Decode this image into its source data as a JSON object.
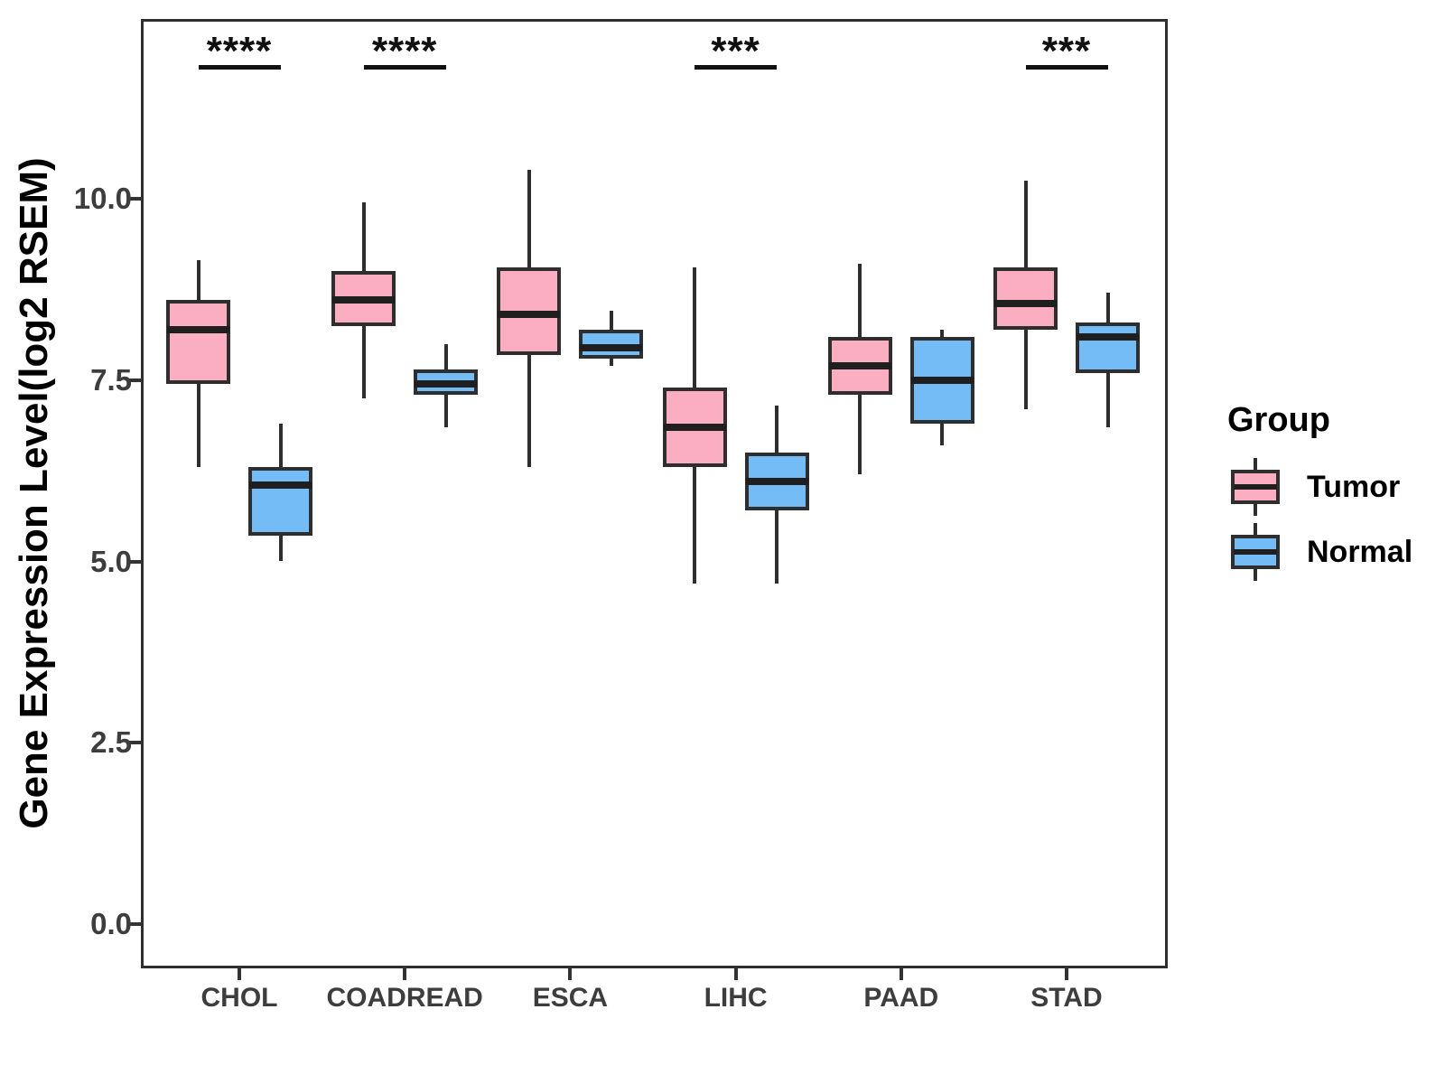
{
  "chart_data": {
    "type": "boxplot",
    "title": "",
    "xlabel": "",
    "ylabel": "Gene Expression Level(log2 RSEM)",
    "categories": [
      "CHOL",
      "COADREAD",
      "ESCA",
      "LIHC",
      "PAAD",
      "STAD"
    ],
    "y_tick_labels": [
      "0.0",
      "2.5",
      "5.0",
      "7.5",
      "10.0"
    ],
    "y_tick_values": [
      0,
      2.5,
      5,
      7.5,
      10
    ],
    "ylim": [
      -0.6,
      12.5
    ],
    "grid": false,
    "legend_position": "right",
    "series": [
      {
        "name": "Tumor",
        "fill": "#FBAEC1",
        "boxes": [
          {
            "low": 6.3,
            "q1": 7.45,
            "median": 8.2,
            "q3": 8.6,
            "high": 9.15
          },
          {
            "low": 7.25,
            "q1": 8.25,
            "median": 8.6,
            "q3": 9.0,
            "high": 9.95
          },
          {
            "low": 6.3,
            "q1": 7.85,
            "median": 8.4,
            "q3": 9.05,
            "high": 10.4
          },
          {
            "low": 4.7,
            "q1": 6.3,
            "median": 6.85,
            "q3": 7.4,
            "high": 9.05
          },
          {
            "low": 6.2,
            "q1": 7.3,
            "median": 7.7,
            "q3": 8.1,
            "high": 9.1
          },
          {
            "low": 7.1,
            "q1": 8.2,
            "median": 8.55,
            "q3": 9.05,
            "high": 10.25
          }
        ]
      },
      {
        "name": "Normal",
        "fill": "#73BCF6",
        "boxes": [
          {
            "low": 5.0,
            "q1": 5.35,
            "median": 6.05,
            "q3": 6.3,
            "high": 6.9
          },
          {
            "low": 6.85,
            "q1": 7.3,
            "median": 7.45,
            "q3": 7.65,
            "high": 8.0
          },
          {
            "low": 7.7,
            "q1": 7.8,
            "median": 7.95,
            "q3": 8.2,
            "high": 8.45
          },
          {
            "low": 4.7,
            "q1": 5.7,
            "median": 6.1,
            "q3": 6.5,
            "high": 7.15
          },
          {
            "low": 6.6,
            "q1": 6.9,
            "median": 7.5,
            "q3": 8.1,
            "high": 8.2
          },
          {
            "low": 6.85,
            "q1": 7.6,
            "median": 8.1,
            "q3": 8.3,
            "high": 8.7
          }
        ]
      }
    ],
    "annotations": [
      {
        "category": "CHOL",
        "label": "****"
      },
      {
        "category": "COADREAD",
        "label": "****"
      },
      {
        "category": "LIHC",
        "label": "***"
      },
      {
        "category": "STAD",
        "label": "***"
      }
    ]
  },
  "legend": {
    "title": "Group",
    "items": [
      {
        "label": "Tumor",
        "color": "#FBAEC1"
      },
      {
        "label": "Normal",
        "color": "#73BCF6"
      }
    ]
  }
}
